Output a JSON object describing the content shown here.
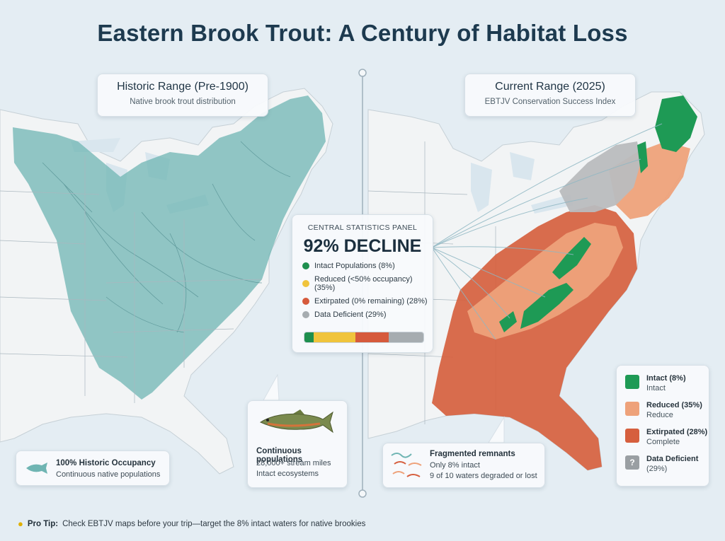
{
  "title": "Eastern Brook Trout: A Century of Habitat Loss",
  "historic": {
    "title": "Historic Range (Pre-1900)",
    "subtitle": "Native brook trout distribution",
    "occupancy": {
      "title": "100% Historic Occupancy",
      "subtitle": "Continuous native populations"
    },
    "populations": {
      "title": "Continuous populations",
      "line1": "28,000+ stream miles",
      "line2": "Intact ecosystems"
    }
  },
  "current": {
    "title": "Current Range (2025)",
    "subtitle": "EBTJV Conservation Success Index",
    "fragmented": {
      "title": "Fragmented remnants",
      "line1": "Only 8% intact",
      "line2": "9 of 10 waters degraded or lost"
    }
  },
  "stats": {
    "label": "CENTRAL STATISTICS PANEL",
    "headline": "92% DECLINE",
    "rows": [
      {
        "label": "Intact Populations (8%)",
        "color": "#1e8f4e",
        "value": 8
      },
      {
        "label": "Reduced (<50% occupancy) (35%)",
        "color": "#f0c43c",
        "value": 35
      },
      {
        "label": "Extirpated (0% remaining) (28%)",
        "color": "#d65a3c",
        "value": 28
      },
      {
        "label": "Data Deficient (29%)",
        "color": "#a6acb0",
        "value": 29
      }
    ]
  },
  "legend": [
    {
      "title": "Intact (8%)",
      "sub": "Intact",
      "color": "#1e9a55"
    },
    {
      "title": "Reduced (35%)",
      "sub": "Reduce",
      "color": "#eea27a"
    },
    {
      "title": "Extirpated (28%)",
      "sub": "Complete",
      "color": "#d65f3e"
    },
    {
      "title": "Data Deficient",
      "sub": "(29%)",
      "color": "#9a9fa3",
      "glyph": "?"
    }
  ],
  "protip": {
    "label": "Pro Tip:",
    "text": "Check EBTJV maps before your trip—target the 8% intact waters for native brookies"
  },
  "colors": {
    "historic_fill": "#6fb5b3",
    "land": "#f3f5f6",
    "water": "#d7e4ec",
    "intact": "#1e9a55",
    "reduced": "#eea27a",
    "extirpated": "#d65f3e",
    "deficient": "#b9bcbe"
  }
}
